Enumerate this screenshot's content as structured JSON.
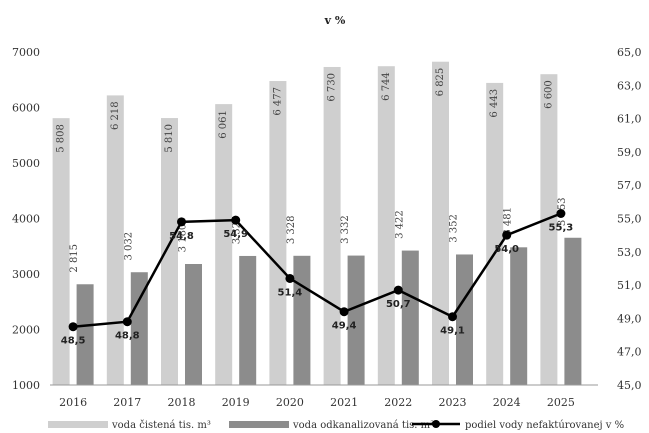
{
  "chart_data": {
    "type": "bar",
    "categories": [
      "2016",
      "2017",
      "2018",
      "2019",
      "2020",
      "2021",
      "2022",
      "2023",
      "2024",
      "2025"
    ],
    "series": [
      {
        "name": "voda čistená tis. m³",
        "kind": "bar",
        "axis": "left",
        "color": "#cfcfcf",
        "values": [
          5808,
          6218,
          5810,
          6061,
          6477,
          6730,
          6744,
          6825,
          6443,
          6600
        ],
        "labels": [
          "5 808",
          "6 218",
          "5 810",
          "6 061",
          "6 477",
          "6 730",
          "6 744",
          "6 825",
          "6 443",
          "6 600"
        ]
      },
      {
        "name": "voda odkanalizovaná tis. m³",
        "kind": "bar",
        "axis": "left",
        "color": "#8c8c8c",
        "values": [
          2815,
          3032,
          3180,
          3325,
          3328,
          3332,
          3422,
          3352,
          3481,
          3653
        ],
        "labels": [
          "2 815",
          "3 032",
          "3 180",
          "3 325",
          "3 328",
          "3 332",
          "3 422",
          "3 352",
          "3 481",
          "3 653"
        ]
      },
      {
        "name": "podiel vody nefaktúrovanej v %",
        "kind": "line",
        "axis": "right",
        "color": "#000000",
        "values": [
          48.5,
          48.8,
          54.8,
          54.9,
          51.4,
          49.4,
          50.7,
          49.1,
          54.0,
          55.3
        ],
        "labels": [
          "48,5",
          "48,8",
          "54,8",
          "54,9",
          "51,4",
          "49,4",
          "50,7",
          "49,1",
          "54,0",
          "55,3"
        ]
      }
    ],
    "y_left": {
      "ylim": [
        1000,
        7000
      ],
      "ticks": [
        "1000",
        "2000",
        "3000",
        "4000",
        "5000",
        "6000",
        "7000"
      ]
    },
    "y_right": {
      "label": "v %",
      "ylim": [
        45,
        65
      ],
      "ticks": [
        "45,0",
        "47,0",
        "49,0",
        "51,0",
        "53,0",
        "55,0",
        "57,0",
        "59,0",
        "61,0",
        "63,0",
        "65,0"
      ]
    },
    "grid": false,
    "legend": "bottom"
  }
}
